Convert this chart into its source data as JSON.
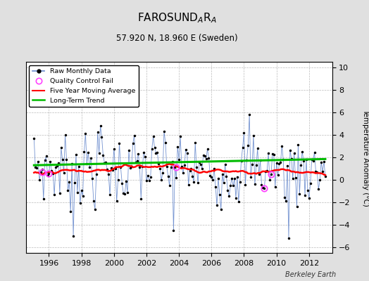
{
  "title_main": "FAROSUND",
  "title_sub1": "A",
  "title_sub2": "R",
  "title_sub3": "A",
  "subtitle": "57.920 N, 18.960 E (Sweden)",
  "ylabel": "Temperature Anomaly (°C)",
  "watermark": "Berkeley Earth",
  "xlim": [
    1994.58,
    2013.42
  ],
  "ylim": [
    -6.5,
    10.5
  ],
  "yticks": [
    -6,
    -4,
    -2,
    0,
    2,
    4,
    6,
    8,
    10
  ],
  "xticks": [
    1996,
    1998,
    2000,
    2002,
    2004,
    2006,
    2008,
    2010,
    2012
  ],
  "bg_color": "#e0e0e0",
  "plot_bg": "#ffffff",
  "raw_color": "#6688cc",
  "dot_color": "#000000",
  "moving_avg_color": "#ff0000",
  "trend_color": "#00bb00",
  "qc_color": "#ff44ff",
  "seed": 7
}
